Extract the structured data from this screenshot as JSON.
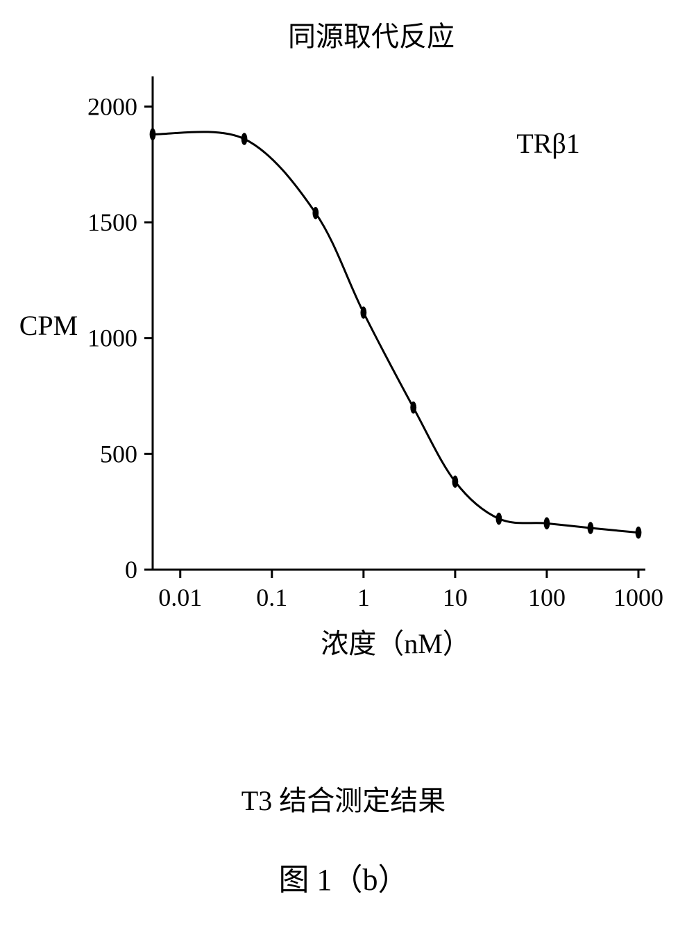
{
  "chart": {
    "type": "line",
    "title": "同源取代反应",
    "series_label": "TRβ1",
    "xlabel": "浓度（nM）",
    "ylabel": "CPM",
    "x_scale": "log",
    "y_scale": "linear",
    "x_ticks": [
      0.01,
      0.1,
      1,
      10,
      100,
      1000
    ],
    "x_tick_labels": [
      "0.01",
      "0.1",
      "1",
      "10",
      "100",
      "1000"
    ],
    "y_ticks": [
      0,
      500,
      1000,
      1500,
      2000
    ],
    "y_tick_labels": [
      "0",
      "500",
      "1000",
      "1500",
      "2000"
    ],
    "xlim": [
      0.005,
      1000
    ],
    "ylim": [
      0,
      2100
    ],
    "data_x": [
      0.005,
      0.05,
      0.3,
      1.0,
      3.5,
      10,
      30,
      100,
      300,
      1000
    ],
    "data_y": [
      1880,
      1860,
      1540,
      1110,
      700,
      380,
      220,
      200,
      180,
      160
    ],
    "line_color": "#000000",
    "marker_color": "#000000",
    "marker_style": "oval",
    "marker_size": 8,
    "line_width": 3,
    "axis_width": 3,
    "tick_length": 12,
    "background_color": "#ffffff",
    "title_fontsize": 40,
    "label_fontsize": 40,
    "tick_fontsize": 36
  },
  "captions": {
    "caption1": "T3 结合测定结果",
    "caption2": "图 1（b）"
  }
}
